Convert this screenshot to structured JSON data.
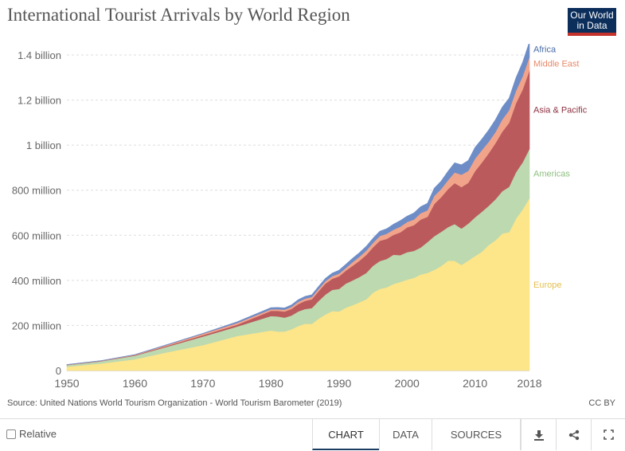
{
  "header": {
    "title": "International Tourist Arrivals by World Region",
    "logo_line1": "Our World",
    "logo_line2": "in Data"
  },
  "chart_data": {
    "type": "area",
    "stacked": true,
    "title": "International Tourist Arrivals by World Region",
    "x": [
      1950,
      1955,
      1960,
      1965,
      1970,
      1975,
      1980,
      1981,
      1982,
      1983,
      1984,
      1985,
      1986,
      1987,
      1988,
      1989,
      1990,
      1991,
      1992,
      1993,
      1994,
      1995,
      1996,
      1997,
      1998,
      1999,
      2000,
      2001,
      2002,
      2003,
      2004,
      2005,
      2006,
      2007,
      2008,
      2009,
      2010,
      2011,
      2012,
      2013,
      2014,
      2015,
      2016,
      2017,
      2018
    ],
    "series": [
      {
        "name": "Europe",
        "color": "#fde58a",
        "values": [
          17,
          31,
          50,
          83,
          113,
          153,
          178,
          173,
          173,
          183,
          197,
          208,
          207,
          230,
          249,
          264,
          262,
          279,
          290,
          303,
          316,
          346,
          362,
          369,
          384,
          393,
          403,
          411,
          426,
          433,
          447,
          463,
          487,
          487,
          469,
          488,
          508,
          527,
          557,
          578,
          608,
          614,
          673,
          715,
          765
        ]
      },
      {
        "name": "Americas",
        "color": "#bcd9b0",
        "values": [
          7,
          10,
          16,
          25,
          38,
          42,
          64,
          67,
          62,
          61,
          65,
          65,
          70,
          79,
          88,
          94,
          100,
          107,
          110,
          112,
          117,
          119,
          124,
          126,
          130,
          119,
          122,
          120,
          120,
          137,
          149,
          152,
          149,
          163,
          161,
          164,
          172,
          178,
          174,
          182,
          188,
          201,
          206,
          209,
          219
        ]
      },
      {
        "name": "Asia & Pacific",
        "color": "#bb5a5d",
        "values": [
          1,
          1,
          2,
          4,
          6,
          8,
          23,
          25,
          27,
          29,
          33,
          36,
          39,
          43,
          49,
          49,
          56,
          57,
          65,
          72,
          80,
          82,
          90,
          89,
          88,
          101,
          110,
          114,
          124,
          112,
          143,
          154,
          168,
          182,
          184,
          181,
          205,
          218,
          233,
          249,
          264,
          284,
          306,
          323,
          348
        ]
      },
      {
        "name": "Middle East",
        "color": "#f2a48a",
        "values": [
          1,
          1,
          2,
          4,
          6,
          8,
          7,
          7,
          8,
          9,
          10,
          10,
          10,
          10,
          11,
          12,
          12,
          12,
          16,
          18,
          19,
          20,
          21,
          23,
          23,
          25,
          24,
          25,
          28,
          29,
          36,
          36,
          40,
          47,
          55,
          53,
          55,
          55,
          51,
          49,
          54,
          56,
          55,
          59,
          60
        ]
      },
      {
        "name": "Africa",
        "color": "#6e8dc7",
        "values": [
          1,
          1,
          1,
          2,
          2,
          5,
          7,
          8,
          8,
          9,
          9,
          10,
          10,
          11,
          12,
          13,
          15,
          16,
          17,
          18,
          19,
          20,
          21,
          22,
          24,
          27,
          26,
          29,
          29,
          31,
          34,
          35,
          39,
          43,
          44,
          46,
          50,
          49,
          52,
          55,
          55,
          53,
          58,
          62,
          67
        ]
      }
    ],
    "xlim": [
      1950,
      2018
    ],
    "ylim": [
      0,
      1400000000
    ],
    "x_ticks": [
      1950,
      1960,
      1970,
      1980,
      1990,
      2000,
      2010,
      2018
    ],
    "y_ticks": [
      {
        "value": 0,
        "label": "0"
      },
      {
        "value": 200,
        "label": "200 million"
      },
      {
        "value": 400,
        "label": "400 million"
      },
      {
        "value": 600,
        "label": "600 million"
      },
      {
        "value": 800,
        "label": "800 million"
      },
      {
        "value": 1000,
        "label": "1 billion"
      },
      {
        "value": 1200,
        "label": "1.2 billion"
      },
      {
        "value": 1400,
        "label": "1.4 billion"
      }
    ],
    "grid": true,
    "legend": "right, inline labels at series ends"
  },
  "source_text": "Source: United Nations World Tourism Organization - World Tourism Barometer (2019)",
  "license": "CC BY",
  "footer": {
    "relative_label": "Relative",
    "tabs": [
      "CHART",
      "DATA",
      "SOURCES"
    ],
    "icons": [
      "download-icon",
      "share-icon",
      "fullscreen-icon"
    ]
  }
}
